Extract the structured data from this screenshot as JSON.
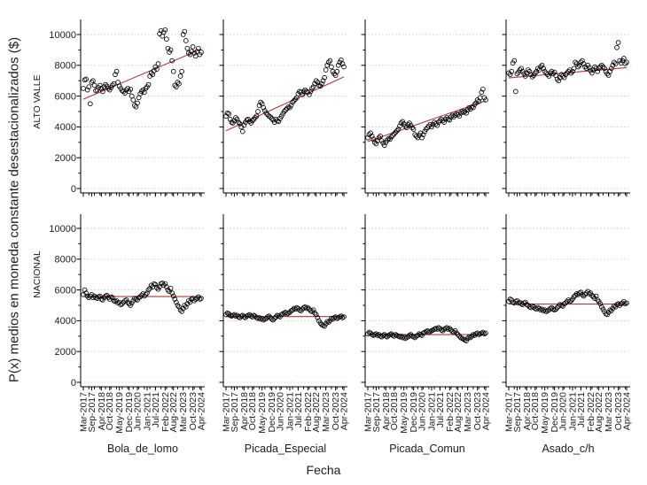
{
  "figure": {
    "background": "#ffffff",
    "text_color": "#1c1c1c"
  },
  "chart_data": {
    "type": "scatter",
    "title": "",
    "xlabel": "Fecha",
    "ylabel": "P(x) medios en moneda constante desestacionalizados ($)",
    "rows": [
      "ALTO VALLE",
      "NACIONAL"
    ],
    "cols": [
      "Bola_de_lomo",
      "Picada_Especial",
      "Picada_Comun",
      "Asado_c/h"
    ],
    "x_tick_labels": [
      "Mar-2017",
      "Sep-2017",
      "Apr-2018",
      "Oct-2018",
      "May-2019",
      "Dec-2019",
      "Jun-2020",
      "Jan-2021",
      "Jul-2021",
      "Feb-2022",
      "Aug-2022",
      "Mar-2023",
      "Oct-2023",
      "Apr-2024"
    ],
    "x_tick_month_index": [
      0,
      6,
      13,
      19,
      26,
      33,
      39,
      46,
      52,
      59,
      65,
      72,
      79,
      85
    ],
    "n_months": 86,
    "y_ticks": [
      0,
      2000,
      4000,
      6000,
      8000,
      10000
    ],
    "y_minor_step": 1000,
    "ylim": [
      0,
      10000
    ],
    "grid": {
      "horizontal": true,
      "style": "dotted",
      "color": "#c9c9c9"
    },
    "point": {
      "marker": "open-circle",
      "stroke": "#000000"
    },
    "trend_color": "#b03a3a",
    "axis_color": "#000000",
    "panels": [
      {
        "row": "ALTO VALLE",
        "col": "Bola_de_lomo",
        "trend": {
          "start": 5800,
          "end": 9050
        },
        "values": [
          6500,
          7050,
          7100,
          6400,
          6600,
          5500,
          6900,
          7000,
          6700,
          6350,
          6400,
          6550,
          6700,
          6500,
          6300,
          6600,
          6750,
          6650,
          6500,
          6400,
          6550,
          6700,
          6800,
          7400,
          7600,
          6900,
          6650,
          6500,
          6350,
          6300,
          6200,
          6400,
          6500,
          6300,
          6450,
          6000,
          5750,
          5400,
          5300,
          5550,
          5900,
          6150,
          6300,
          6400,
          6250,
          6500,
          6600,
          6750,
          7300,
          7500,
          7400,
          7650,
          7900,
          7750,
          8100,
          10050,
          10250,
          9900,
          10150,
          10300,
          9700,
          9100,
          8850,
          9000,
          8300,
          7600,
          6700,
          6600,
          6900,
          6800,
          7300,
          7600,
          10000,
          10200,
          9600,
          9100,
          8800,
          8700,
          8900,
          9200,
          8800,
          8600,
          8900,
          9100,
          8700,
          8850
        ]
      },
      {
        "row": "ALTO VALLE",
        "col": "Picada_Especial",
        "trend": {
          "start": 3750,
          "end": 7250
        },
        "values": [
          4700,
          4900,
          4850,
          4500,
          4300,
          4250,
          4400,
          4600,
          4500,
          4300,
          4200,
          4000,
          3700,
          4100,
          4300,
          4450,
          4500,
          4350,
          4250,
          4400,
          4500,
          4600,
          4700,
          5000,
          5400,
          5600,
          5500,
          5250,
          5050,
          4900,
          4800,
          4700,
          4650,
          4550,
          4450,
          4300,
          4500,
          4400,
          4350,
          4550,
          4700,
          4850,
          5000,
          5100,
          5200,
          5300,
          5250,
          5400,
          5600,
          5700,
          5800,
          5900,
          6150,
          6300,
          6250,
          6100,
          6300,
          6400,
          6300,
          6250,
          6100,
          6300,
          6500,
          6600,
          6800,
          7000,
          6900,
          6700,
          6650,
          6800,
          7000,
          7200,
          7700,
          8000,
          8200,
          8300,
          7900,
          7600,
          7450,
          7350,
          7600,
          8000,
          8200,
          8350,
          8100,
          7900
        ]
      },
      {
        "row": "ALTO VALLE",
        "col": "Picada_Comun",
        "trend": {
          "start": 3050,
          "end": 5700
        },
        "values": [
          3300,
          3500,
          3600,
          3400,
          3200,
          3000,
          2900,
          3100,
          3300,
          3400,
          3100,
          2950,
          2800,
          3000,
          3150,
          3250,
          3200,
          3350,
          3450,
          3550,
          3650,
          3750,
          3850,
          4050,
          4250,
          4350,
          4200,
          4050,
          3950,
          4150,
          4250,
          4100,
          3950,
          3850,
          3500,
          3400,
          3300,
          3450,
          3600,
          3300,
          3500,
          3700,
          3850,
          3950,
          4050,
          4150,
          4000,
          4150,
          4300,
          4200,
          4100,
          4300,
          4400,
          4500,
          4400,
          4300,
          4500,
          4600,
          4500,
          4450,
          4650,
          4750,
          4650,
          4750,
          4850,
          4800,
          4700,
          4900,
          5000,
          4950,
          5000,
          4900,
          5100,
          5250,
          5150,
          5300,
          5250,
          5450,
          5550,
          5750,
          5650,
          5900,
          6250,
          6450,
          5900,
          5750
        ]
      },
      {
        "row": "ALTO VALLE",
        "col": "Asado_c/h",
        "trend": {
          "start": 7180,
          "end": 7850
        },
        "values": [
          7500,
          7400,
          7600,
          8150,
          8300,
          6300,
          7450,
          7550,
          7700,
          7800,
          7600,
          7450,
          7300,
          7500,
          7700,
          7600,
          7400,
          7250,
          7350,
          7500,
          7600,
          7800,
          7700,
          7900,
          8000,
          7800,
          7600,
          7500,
          7400,
          7300,
          7500,
          7600,
          7450,
          7550,
          7350,
          7100,
          7000,
          7200,
          7400,
          7300,
          7200,
          7400,
          7500,
          7600,
          7700,
          7500,
          7600,
          7800,
          8200,
          8100,
          7900,
          8000,
          8200,
          8300,
          8100,
          7900,
          7800,
          8000,
          7850,
          7650,
          7500,
          7700,
          7900,
          7800,
          7600,
          7800,
          7900,
          8000,
          7900,
          7800,
          7600,
          7450,
          7350,
          7600,
          7800,
          8000,
          8200,
          8100,
          9150,
          9480,
          8300,
          8150,
          8300,
          8450,
          8100,
          8200
        ]
      },
      {
        "row": "NACIONAL",
        "col": "Bola_de_lomo",
        "trend": {
          "start": 5570,
          "end": 5570
        },
        "values": [
          5700,
          6000,
          5800,
          5600,
          5500,
          5600,
          5700,
          5500,
          5600,
          5500,
          5450,
          5550,
          5600,
          5400,
          5350,
          5500,
          5600,
          5650,
          5500,
          5400,
          5550,
          5500,
          5300,
          5250,
          5300,
          5150,
          5200,
          5050,
          5100,
          5200,
          5300,
          5350,
          5200,
          5100,
          5000,
          5150,
          5300,
          5450,
          5400,
          5350,
          5500,
          5550,
          5650,
          5750,
          5600,
          5700,
          5800,
          6000,
          6100,
          6300,
          6200,
          6400,
          6350,
          6150,
          6050,
          6200,
          6400,
          6450,
          6300,
          6400,
          6200,
          6000,
          5900,
          6100,
          5800,
          5600,
          5400,
          5200,
          5000,
          4900,
          4700,
          4600,
          4800,
          5000,
          4900,
          5100,
          5300,
          5200,
          5400,
          5450,
          5300,
          5400,
          5450,
          5550,
          5400,
          5450
        ]
      },
      {
        "row": "NACIONAL",
        "col": "Picada_Especial",
        "trend": {
          "start": 4270,
          "end": 4270
        },
        "values": [
          4400,
          4500,
          4450,
          4350,
          4300,
          4350,
          4400,
          4300,
          4350,
          4250,
          4200,
          4300,
          4350,
          4250,
          4200,
          4300,
          4350,
          4400,
          4300,
          4250,
          4350,
          4300,
          4200,
          4150,
          4200,
          4100,
          4150,
          4050,
          4100,
          4150,
          4250,
          4300,
          4200,
          4100,
          4050,
          4150,
          4250,
          4350,
          4300,
          4250,
          4400,
          4450,
          4500,
          4550,
          4450,
          4500,
          4550,
          4650,
          4700,
          4800,
          4750,
          4850,
          4800,
          4700,
          4650,
          4750,
          4850,
          4900,
          4800,
          4850,
          4750,
          4650,
          4600,
          4700,
          4500,
          4400,
          4200,
          4000,
          3850,
          3750,
          3700,
          3650,
          3800,
          3950,
          3900,
          4000,
          4150,
          4100,
          4200,
          4250,
          4150,
          4200,
          4250,
          4300,
          4200,
          4250
        ]
      },
      {
        "row": "NACIONAL",
        "col": "Picada_Comun",
        "trend": {
          "start": 3100,
          "end": 3100
        },
        "values": [
          3150,
          3250,
          3200,
          3100,
          3050,
          3100,
          3150,
          3050,
          3100,
          3000,
          2950,
          3050,
          3100,
          3000,
          2950,
          3050,
          3100,
          3150,
          3050,
          3000,
          3100,
          3050,
          3000,
          2950,
          3000,
          2900,
          2950,
          2850,
          2900,
          2950,
          3050,
          3100,
          3000,
          2950,
          2900,
          3000,
          3050,
          3150,
          3100,
          3050,
          3200,
          3250,
          3300,
          3350,
          3250,
          3300,
          3350,
          3400,
          3450,
          3500,
          3450,
          3550,
          3500,
          3400,
          3350,
          3450,
          3500,
          3550,
          3450,
          3500,
          3400,
          3300,
          3250,
          3350,
          3200,
          3100,
          3000,
          2900,
          2850,
          2800,
          2750,
          2700,
          2850,
          2950,
          2900,
          3000,
          3100,
          3050,
          3150,
          3200,
          3100,
          3150,
          3200,
          3250,
          3150,
          3200
        ]
      },
      {
        "row": "NACIONAL",
        "col": "Asado_c/h",
        "trend": {
          "start": 5080,
          "end": 5080
        },
        "values": [
          5250,
          5400,
          5350,
          5200,
          5150,
          5250,
          5300,
          5150,
          5200,
          5100,
          5050,
          5150,
          5200,
          5050,
          5000,
          4900,
          4850,
          4950,
          4900,
          4800,
          4750,
          4850,
          4800,
          4700,
          4750,
          4650,
          4700,
          4600,
          4650,
          4700,
          4800,
          4850,
          4750,
          4700,
          4750,
          4850,
          4950,
          5050,
          5000,
          4950,
          5100,
          5150,
          5250,
          5350,
          5250,
          5300,
          5400,
          5550,
          5650,
          5750,
          5700,
          5800,
          5850,
          5700,
          5600,
          5700,
          5800,
          5900,
          5750,
          5800,
          5650,
          5550,
          5450,
          5600,
          5350,
          5250,
          5100,
          4900,
          4750,
          4600,
          4450,
          4400,
          4550,
          4700,
          4650,
          4800,
          4950,
          4900,
          5050,
          5100,
          5000,
          5100,
          5150,
          5250,
          5100,
          5150
        ]
      }
    ]
  }
}
